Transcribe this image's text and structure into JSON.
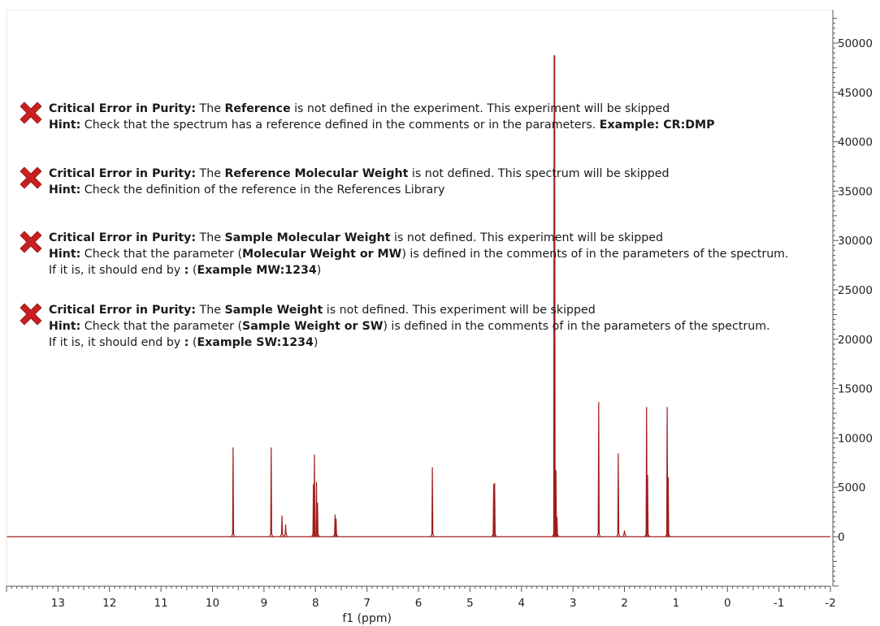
{
  "errors": [
    {
      "line1": [
        {
          "b": true,
          "t": "Critical Error in Purity:"
        },
        {
          "b": false,
          "t": " The "
        },
        {
          "b": true,
          "t": "Reference"
        },
        {
          "b": false,
          "t": " is not defined in the experiment. This experiment will be skipped"
        }
      ],
      "line2": [
        {
          "b": true,
          "t": "Hint:"
        },
        {
          "b": false,
          "t": " Check that the spectrum has a reference defined in the comments or in the parameters. "
        },
        {
          "b": true,
          "t": "Example: CR:DMP"
        }
      ],
      "line3": []
    },
    {
      "line1": [
        {
          "b": true,
          "t": "Critical Error in Purity:"
        },
        {
          "b": false,
          "t": " The "
        },
        {
          "b": true,
          "t": "Reference Molecular Weight"
        },
        {
          "b": false,
          "t": " is not defined. This spectrum will be skipped"
        }
      ],
      "line2": [
        {
          "b": true,
          "t": "Hint:"
        },
        {
          "b": false,
          "t": " Check the definition of the reference in the References Library"
        }
      ],
      "line3": []
    },
    {
      "line1": [
        {
          "b": true,
          "t": "Critical Error in Purity:"
        },
        {
          "b": false,
          "t": " The "
        },
        {
          "b": true,
          "t": "Sample Molecular Weight"
        },
        {
          "b": false,
          "t": " is not defined. This experiment will be skipped"
        }
      ],
      "line2": [
        {
          "b": true,
          "t": "Hint:"
        },
        {
          "b": false,
          "t": " Check that the parameter ("
        },
        {
          "b": true,
          "t": "Molecular Weight or MW"
        },
        {
          "b": false,
          "t": ") is defined in the comments of in the parameters of the spectrum."
        }
      ],
      "line3": [
        {
          "b": false,
          "t": "If it is, it should end by "
        },
        {
          "b": true,
          "t": ":"
        },
        {
          "b": false,
          "t": " ("
        },
        {
          "b": true,
          "t": "Example MW:1234"
        },
        {
          "b": false,
          "t": ")"
        }
      ]
    },
    {
      "line1": [
        {
          "b": true,
          "t": "Critical Error in Purity:"
        },
        {
          "b": false,
          "t": " The "
        },
        {
          "b": true,
          "t": "Sample Weight"
        },
        {
          "b": false,
          "t": " is not defined. This experiment will be skipped"
        }
      ],
      "line2": [
        {
          "b": true,
          "t": "Hint:"
        },
        {
          "b": false,
          "t": " Check that the parameter ("
        },
        {
          "b": true,
          "t": "Sample Weight or SW"
        },
        {
          "b": false,
          "t": ") is defined in the comments of in the parameters of the spectrum."
        }
      ],
      "line3": [
        {
          "b": false,
          "t": "If it is, it should end by "
        },
        {
          "b": true,
          "t": ":"
        },
        {
          "b": false,
          "t": " ("
        },
        {
          "b": true,
          "t": "Example SW:1234"
        },
        {
          "b": false,
          "t": ")"
        }
      ]
    }
  ],
  "error_icon": "red-x-icon",
  "colors": {
    "spectrum": "#a01c1c",
    "error_icon": "#c8201e",
    "axis": "#555555"
  },
  "chart_data": {
    "type": "line",
    "xlabel": "f1 (ppm)",
    "ylabel": "",
    "xlim": [
      14,
      -2
    ],
    "ylim": [
      -5000,
      53000
    ],
    "x_reversed": true,
    "grid": false,
    "x_ticks": [
      13,
      12,
      11,
      10,
      9,
      8,
      7,
      6,
      5,
      4,
      3,
      2,
      1,
      0,
      -1,
      -2
    ],
    "y_ticks": [
      0,
      5000,
      10000,
      15000,
      20000,
      25000,
      30000,
      35000,
      40000,
      45000,
      50000
    ],
    "series": [
      {
        "peaks": [
          {
            "x": 9.6,
            "y": 9000
          },
          {
            "x": 8.86,
            "y": 9000
          },
          {
            "x": 8.65,
            "y": 2100
          },
          {
            "x": 8.58,
            "y": 1200
          },
          {
            "x": 8.04,
            "y": 5300
          },
          {
            "x": 8.02,
            "y": 8300
          },
          {
            "x": 7.98,
            "y": 5500
          },
          {
            "x": 7.96,
            "y": 3400
          },
          {
            "x": 7.62,
            "y": 2200
          },
          {
            "x": 7.6,
            "y": 1800
          },
          {
            "x": 5.73,
            "y": 7000
          },
          {
            "x": 4.54,
            "y": 5300
          },
          {
            "x": 4.52,
            "y": 5400
          },
          {
            "x": 3.36,
            "y": 48700
          },
          {
            "x": 3.33,
            "y": 6700
          },
          {
            "x": 3.31,
            "y": 2000
          },
          {
            "x": 2.5,
            "y": 13600
          },
          {
            "x": 2.12,
            "y": 8400
          },
          {
            "x": 2.0,
            "y": 600
          },
          {
            "x": 1.57,
            "y": 13100
          },
          {
            "x": 1.55,
            "y": 6200
          },
          {
            "x": 1.17,
            "y": 13100
          },
          {
            "x": 1.15,
            "y": 6000
          }
        ]
      }
    ]
  }
}
